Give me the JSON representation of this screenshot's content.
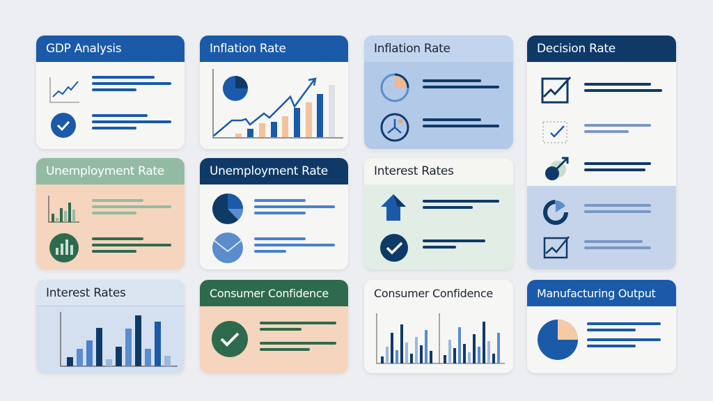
{
  "cards": [
    {
      "title": "GDP Analysis"
    },
    {
      "title": "Inflation Rate"
    },
    {
      "title": "Inflation Rate"
    },
    {
      "title": "Decision Rate"
    },
    {
      "title": "Unemployment Rate"
    },
    {
      "title": "Unemployment Rate"
    },
    {
      "title": "Interest Rates"
    },
    {
      "title": "Interest Rates"
    },
    {
      "title": "Consumer Confidence"
    },
    {
      "title": "Consumer Confidence"
    },
    {
      "title": "Manufacturing Output"
    }
  ],
  "colors": {
    "blue": "#1a5aa8",
    "navy": "#0f3a68",
    "green": "#2e6a4e",
    "peach": "#f5d5bd",
    "lightblue": "#bcd0ea",
    "mint": "#e2ede6"
  }
}
